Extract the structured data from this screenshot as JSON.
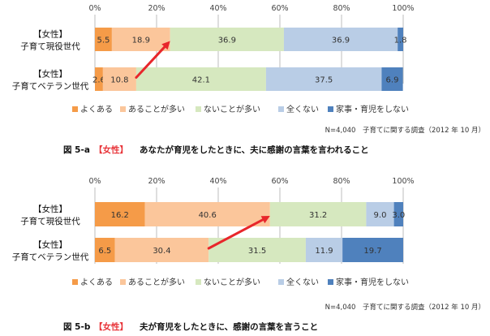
{
  "colors": {
    "series": [
      "#f59b48",
      "#fbc69b",
      "#d6e8bf",
      "#b9cde6",
      "#4f81bd"
    ],
    "grid": "#bcbcbc",
    "arrow": "#e8262b",
    "caption_red": "#e8353a"
  },
  "chart_data": [
    {
      "type": "bar",
      "orientation": "horizontal",
      "stacked": true,
      "categories": [
        {
          "line1": "【女性】",
          "line2": "子育て現役世代"
        },
        {
          "line1": "【女性】",
          "line2": "子育てベテラン世代"
        }
      ],
      "series": [
        {
          "name": "よくある",
          "values": [
            5.5,
            2.6
          ]
        },
        {
          "name": "あることが多い",
          "values": [
            18.9,
            10.8
          ]
        },
        {
          "name": "ないことが多い",
          "values": [
            36.9,
            42.1
          ]
        },
        {
          "name": "全くない",
          "values": [
            36.9,
            37.5
          ]
        },
        {
          "name": "家事・育児をしない",
          "values": [
            1.8,
            6.9
          ]
        }
      ],
      "xlim": [
        0,
        100
      ],
      "xticks": [
        "0%",
        "20%",
        "40%",
        "60%",
        "80%",
        "100%"
      ],
      "grid": true,
      "legend": "bottom",
      "arrow": {
        "from_category": 1,
        "to_category": 0,
        "direction": "up-right"
      },
      "note": "N=4,040　子育てに関する調査（2012 年 10 月）",
      "caption_prefix": "図 5-a",
      "caption_tag": "【女性】",
      "caption_text": "あなたが育児をしたときに、夫に感謝の言葉を言われること"
    },
    {
      "type": "bar",
      "orientation": "horizontal",
      "stacked": true,
      "categories": [
        {
          "line1": "【女性】",
          "line2": "子育て現役世代"
        },
        {
          "line1": "【女性】",
          "line2": "子育てベテラン世代"
        }
      ],
      "series": [
        {
          "name": "よくある",
          "values": [
            16.2,
            6.5
          ]
        },
        {
          "name": "あることが多い",
          "values": [
            40.6,
            30.4
          ]
        },
        {
          "name": "ないことが多い",
          "values": [
            31.2,
            31.5
          ]
        },
        {
          "name": "全くない",
          "values": [
            9.0,
            11.9
          ]
        },
        {
          "name": "家事・育児をしない",
          "values": [
            3.0,
            19.7
          ]
        }
      ],
      "xlim": [
        0,
        100
      ],
      "xticks": [
        "0%",
        "20%",
        "40%",
        "60%",
        "80%",
        "100%"
      ],
      "grid": true,
      "legend": "bottom",
      "arrow": {
        "from_category": 1,
        "to_category": 0,
        "direction": "up-right"
      },
      "note": "N=4,040　子育てに関する調査（2012 年 10 月）",
      "caption_prefix": "図 5-b",
      "caption_tag": "【女性】",
      "caption_text": "夫が育児をしたときに、感謝の言葉を言うこと"
    }
  ]
}
